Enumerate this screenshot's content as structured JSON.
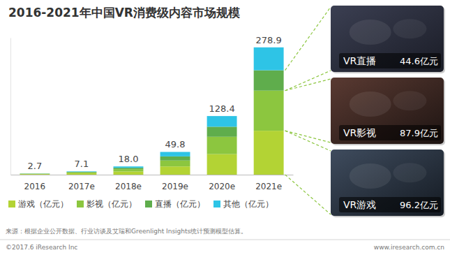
{
  "chart_data": {
    "type": "bar",
    "stacked": true,
    "title": "2016-2021年中国VR消费级内容市场规模",
    "categories": [
      "2016",
      "2017e",
      "2018e",
      "2019e",
      "2020e",
      "2021e"
    ],
    "series": [
      {
        "name": "游戏（亿元）",
        "color": "#b3d334",
        "values": [
          1.4,
          3.2,
          7.0,
          18.0,
          45.0,
          96.2
        ]
      },
      {
        "name": "影视（亿元）",
        "color": "#8cc63f",
        "values": [
          0.6,
          1.8,
          5.0,
          13.0,
          38.0,
          87.9
        ]
      },
      {
        "name": "直播（亿元）",
        "color": "#5fad4c",
        "values": [
          0.4,
          1.1,
          3.0,
          9.0,
          22.0,
          44.6
        ]
      },
      {
        "name": "其他（亿元）",
        "color": "#2ec4e6",
        "values": [
          0.3,
          1.0,
          3.0,
          9.8,
          23.4,
          50.2
        ]
      }
    ],
    "ylim": [
      0,
      300
    ],
    "tick_labels": "x",
    "legend": "bottom",
    "totals": {
      "values": [
        2.7,
        7.1,
        18.0,
        49.8,
        128.4,
        278.9
      ],
      "value_labels": [
        "2.7",
        "7.1",
        "18.0",
        "49.8",
        "128.4",
        "278.9"
      ]
    },
    "annotations": [
      {
        "label": "VR直播",
        "value": 44.6,
        "value_label": "44.6亿元"
      },
      {
        "label": "VR影视",
        "value": 87.9,
        "value_label": "87.9亿元"
      },
      {
        "label": "VR游戏",
        "value": 96.2,
        "value_label": "96.2亿元"
      }
    ],
    "source": "来源：根据企业公开数据、行业访谈及艾瑞和Greenlight Insights统计预测模型估算。",
    "footer": {
      "left": "©2017.6 iResearch Inc",
      "right": "www.iresearch.com.cn"
    }
  }
}
